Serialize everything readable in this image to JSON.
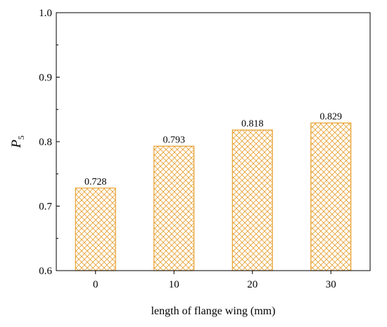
{
  "chart_data": {
    "type": "bar",
    "categories": [
      "0",
      "10",
      "20",
      "30"
    ],
    "values": [
      0.728,
      0.793,
      0.818,
      0.829
    ],
    "data_labels": [
      "0.728",
      "0.793",
      "0.818",
      "0.829"
    ],
    "y_ticks": [
      "0.6",
      "0.7",
      "0.8",
      "0.9",
      "1.0"
    ],
    "ylim": [
      0.6,
      1.0
    ],
    "xlabel": "length of flange wing (mm)",
    "ylabel": {
      "main": "P",
      "sub": "5"
    },
    "grid": false,
    "bar_color": "#E8A030",
    "hatch": "crosshatch"
  }
}
